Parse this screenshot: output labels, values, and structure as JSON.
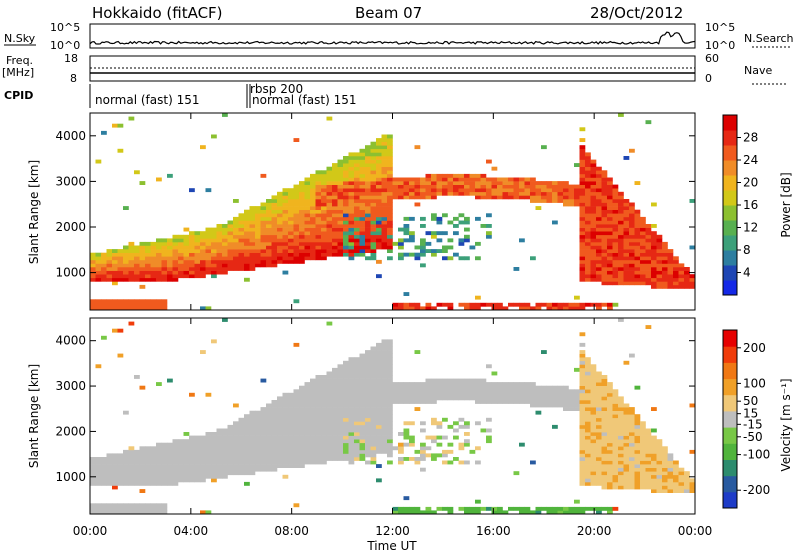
{
  "header": {
    "station": "Hokkaido (fitACF)",
    "beam": "Beam 07",
    "date": "28/Oct/2012"
  },
  "top_panels": {
    "nsky_label": "N.Sky",
    "nsearch_label": "N.Search",
    "freq_label_1": "Freq.",
    "freq_label_2": "[MHz]",
    "nave_label": "Nave",
    "cpid_label": "CPID",
    "nsky_ticks": [
      "10^5",
      "10^0"
    ],
    "nsearch_ticks": [
      "10^5",
      "10^0"
    ],
    "freq_ticks": [
      "18",
      "8"
    ],
    "nave_ticks": [
      "60",
      "0"
    ],
    "cpid_segments": [
      {
        "label": "normal (fast) 151",
        "start": 0.0,
        "end": 6.2
      },
      {
        "label": "rbsp 200",
        "start": 6.2,
        "end": 6.45
      },
      {
        "label": "normal (fast) 151",
        "start": 6.45,
        "end": 24.0
      }
    ]
  },
  "chart_data": [
    {
      "type": "heatmap",
      "title": "Power",
      "xlabel": "Time UT",
      "ylabel": "Slant Range [km]",
      "xlim": [
        0,
        24
      ],
      "ylim": [
        180,
        4500
      ],
      "x_ticks": [
        "00:00",
        "04:00",
        "08:00",
        "12:00",
        "16:00",
        "20:00",
        "00:00"
      ],
      "y_ticks": [
        1000,
        2000,
        3000,
        4000
      ],
      "colorbar": {
        "label": "Power [dB]",
        "ticks": [
          4,
          8,
          12,
          16,
          20,
          24,
          28
        ],
        "range": [
          0,
          32
        ],
        "colors": [
          "#1428e6",
          "#1e46b4",
          "#2d7ea0",
          "#3ca07a",
          "#58b050",
          "#8cc030",
          "#d2c818",
          "#f0b41e",
          "#f08c28",
          "#f05a1e",
          "#e62814",
          "#dc0000"
        ]
      },
      "features": [
        {
          "desc": "near-range band",
          "x": [
            0,
            12
          ],
          "y": [
            900,
            1400
          ],
          "power": 22
        },
        {
          "desc": "rising echo",
          "x": [
            4,
            9
          ],
          "y": [
            1200,
            2200
          ],
          "power": 26
        },
        {
          "desc": "F-region band",
          "x": [
            9,
            20
          ],
          "y": [
            2400,
            3200
          ],
          "power": 24
        },
        {
          "desc": "evening descent",
          "x": [
            20,
            24
          ],
          "y": [
            800,
            2400
          ],
          "power": 28
        }
      ]
    },
    {
      "type": "heatmap",
      "title": "Velocity",
      "xlabel": "Time UT",
      "ylabel": "Slant Range [km]",
      "xlim": [
        0,
        24
      ],
      "ylim": [
        180,
        4500
      ],
      "x_ticks": [
        "00:00",
        "04:00",
        "08:00",
        "12:00",
        "16:00",
        "20:00",
        "00:00"
      ],
      "y_ticks": [
        1000,
        2000,
        3000,
        4000
      ],
      "colorbar": {
        "label": "Velocity [m s⁻¹]",
        "ticks": [
          200,
          100,
          50,
          15,
          -15,
          -50,
          -100,
          -200
        ],
        "range": [
          -250,
          250
        ],
        "colors": [
          "#1e3cc8",
          "#285aa0",
          "#2d8c6e",
          "#50b43c",
          "#78c846",
          "#bebebe",
          "#f0c878",
          "#f0a028",
          "#f07814",
          "#f03c0a",
          "#e60000"
        ]
      },
      "features": [
        {
          "desc": "ground scatter band",
          "x": [
            0,
            20
          ],
          "y": [
            900,
            3100
          ],
          "velocity": 0
        },
        {
          "desc": "positive velocity echoes",
          "x": [
            20,
            22
          ],
          "y": [
            800,
            2400
          ],
          "velocity": 60
        }
      ]
    }
  ]
}
